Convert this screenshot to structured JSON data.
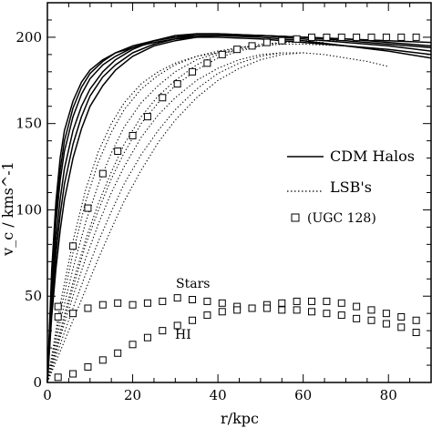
{
  "chart_data": {
    "type": "line",
    "xlabel": "r/kpc",
    "ylabel": "v_c / kms^-1",
    "xlim": [
      0,
      90
    ],
    "ylim": [
      0,
      220
    ],
    "xticks": [
      0,
      20,
      40,
      60,
      80
    ],
    "yticks": [
      0,
      50,
      100,
      150,
      200
    ],
    "xtick_labels": [
      "0",
      "20",
      "40",
      "60",
      "80"
    ],
    "ytick_labels": [
      "0",
      "50",
      "100",
      "150",
      "200"
    ],
    "grid": false,
    "legend_position": "right",
    "legend": [
      {
        "label": "CDM Halos",
        "style": "solid"
      },
      {
        "label": "LSB's",
        "style": "dotted"
      },
      {
        "label": "(UGC 128)",
        "style": "square-marker"
      }
    ],
    "annotations": [
      "Stars",
      "HI"
    ],
    "series_cdm": [
      {
        "x": [
          0,
          1,
          2,
          3,
          4,
          6,
          8,
          10,
          13,
          16,
          20,
          25,
          30,
          35,
          40,
          50,
          60,
          70,
          80,
          90
        ],
        "y": [
          0,
          65,
          105,
          130,
          146,
          163,
          174,
          181,
          187,
          191,
          194,
          197,
          199,
          200,
          200,
          199,
          197,
          195,
          193,
          190
        ]
      },
      {
        "x": [
          0,
          1,
          2,
          3,
          4,
          6,
          8,
          10,
          13,
          16,
          20,
          25,
          30,
          35,
          40,
          50,
          60,
          70,
          80,
          90
        ],
        "y": [
          0,
          55,
          92,
          117,
          134,
          154,
          167,
          176,
          184,
          189,
          194,
          198,
          201,
          202,
          202,
          201,
          199,
          197,
          195,
          192
        ]
      },
      {
        "x": [
          0,
          1,
          2,
          3,
          4,
          6,
          8,
          10,
          13,
          16,
          20,
          25,
          30,
          35,
          40,
          50,
          60,
          70,
          80,
          90
        ],
        "y": [
          0,
          48,
          82,
          106,
          124,
          146,
          160,
          170,
          180,
          187,
          193,
          198,
          200,
          202,
          202,
          201,
          200,
          199,
          197,
          195
        ]
      },
      {
        "x": [
          0,
          1,
          2,
          3,
          4,
          6,
          8,
          10,
          13,
          16,
          20,
          25,
          30,
          35,
          40,
          50,
          60,
          70,
          80,
          90
        ],
        "y": [
          0,
          42,
          74,
          97,
          115,
          138,
          154,
          166,
          177,
          184,
          191,
          196,
          199,
          201,
          201,
          201,
          200,
          198,
          196,
          194
        ]
      },
      {
        "x": [
          0,
          1,
          2,
          3,
          4,
          6,
          8,
          10,
          13,
          16,
          20,
          25,
          30,
          35,
          40,
          50,
          60,
          70,
          80,
          90
        ],
        "y": [
          0,
          60,
          98,
          123,
          140,
          159,
          171,
          179,
          186,
          191,
          195,
          198,
          200,
          201,
          201,
          200,
          198,
          195,
          192,
          188
        ]
      },
      {
        "x": [
          0,
          1,
          2,
          3,
          4,
          6,
          8,
          10,
          13,
          16,
          20,
          25,
          30,
          35,
          40,
          50,
          60,
          70,
          80,
          90
        ],
        "y": [
          0,
          38,
          66,
          88,
          106,
          130,
          147,
          160,
          172,
          181,
          189,
          195,
          198,
          200,
          201,
          201,
          200,
          199,
          198,
          197
        ]
      }
    ],
    "series_lsb": [
      {
        "x": [
          0,
          3,
          6,
          9,
          12,
          15,
          18,
          22,
          26,
          30,
          35,
          40,
          45,
          50
        ],
        "y": [
          0,
          40,
          75,
          105,
          128,
          145,
          158,
          170,
          178,
          184,
          189,
          192,
          194,
          195
        ]
      },
      {
        "x": [
          0,
          3,
          6,
          9,
          12,
          15,
          18,
          22,
          26,
          30,
          35,
          40,
          45,
          50,
          55,
          60,
          65
        ],
        "y": [
          0,
          35,
          66,
          93,
          115,
          133,
          148,
          162,
          172,
          180,
          187,
          191,
          194,
          196,
          197,
          197,
          197
        ]
      },
      {
        "x": [
          0,
          3,
          6,
          9,
          12,
          15,
          18,
          22,
          26,
          30,
          35,
          40,
          45,
          50,
          55,
          60,
          70
        ],
        "y": [
          0,
          30,
          58,
          83,
          104,
          122,
          138,
          154,
          166,
          175,
          184,
          190,
          193,
          195,
          196,
          196,
          195
        ]
      },
      {
        "x": [
          0,
          3,
          6,
          9,
          12,
          15,
          18,
          22,
          26,
          30,
          35,
          40,
          45,
          50,
          55,
          60,
          65,
          70,
          75,
          80
        ],
        "y": [
          0,
          26,
          50,
          72,
          92,
          110,
          125,
          142,
          155,
          165,
          175,
          182,
          187,
          190,
          191,
          191,
          190,
          188,
          186,
          183
        ]
      },
      {
        "x": [
          0,
          3,
          6,
          9,
          12,
          15,
          18,
          22,
          26,
          30,
          35,
          40,
          45,
          50,
          55
        ],
        "y": [
          0,
          22,
          43,
          63,
          82,
          99,
          115,
          132,
          146,
          158,
          170,
          179,
          185,
          189,
          191
        ]
      },
      {
        "x": [
          0,
          3,
          6,
          9,
          12,
          15,
          18,
          22,
          26,
          30,
          35,
          40,
          45,
          50,
          55,
          60
        ],
        "y": [
          0,
          18,
          36,
          54,
          72,
          89,
          105,
          123,
          139,
          152,
          165,
          175,
          182,
          187,
          190,
          191
        ]
      },
      {
        "x": [
          0,
          3,
          6,
          9,
          12,
          15,
          18,
          22,
          26,
          30,
          35,
          40,
          45
        ],
        "y": [
          0,
          45,
          82,
          112,
          134,
          150,
          162,
          173,
          180,
          185,
          189,
          191,
          192
        ]
      },
      {
        "x": [
          0,
          3,
          6,
          9,
          12,
          15,
          18,
          22,
          26,
          30,
          35,
          40,
          45,
          50,
          55,
          60,
          65,
          70,
          75,
          80,
          85,
          90
        ],
        "y": [
          0,
          28,
          55,
          80,
          100,
          118,
          133,
          150,
          162,
          172,
          181,
          188,
          192,
          195,
          197,
          198,
          198,
          198,
          197,
          196,
          195,
          194
        ]
      }
    ],
    "series_ugc128": {
      "name": "(UGC 128)",
      "x": [
        2.5,
        6,
        9.5,
        13,
        16.5,
        20,
        23.5,
        27,
        30.5,
        34,
        37.5,
        41,
        44.5,
        48,
        51.5,
        55,
        58.5,
        62,
        65.5,
        69,
        72.5,
        76,
        79.5,
        83,
        86.5
      ],
      "y": [
        44,
        79,
        101,
        121,
        134,
        143,
        154,
        165,
        173,
        180,
        185,
        190,
        193,
        195,
        197,
        198,
        199,
        200,
        200,
        200,
        200,
        200,
        200,
        200,
        200
      ]
    },
    "series_stars": {
      "name": "Stars",
      "x": [
        2.5,
        6,
        9.5,
        13,
        16.5,
        20,
        23.5,
        27,
        30.5,
        34,
        37.5,
        41,
        44.5,
        48,
        51.5,
        55,
        58.5,
        62,
        65.5,
        69,
        72.5,
        76,
        79.5,
        83,
        86.5
      ],
      "y": [
        38,
        40,
        43,
        45,
        46,
        45,
        46,
        47,
        49,
        48,
        47,
        46,
        44,
        43,
        45,
        46,
        47,
        47,
        47,
        46,
        44,
        42,
        40,
        38,
        36
      ]
    },
    "series_hi": {
      "name": "HI",
      "x": [
        2.5,
        6,
        9.5,
        13,
        16.5,
        20,
        23.5,
        27,
        30.5,
        34,
        37.5,
        41,
        44.5,
        48,
        51.5,
        55,
        58.5,
        62,
        65.5,
        69,
        72.5,
        76,
        79.5,
        83,
        86.5
      ],
      "y": [
        3,
        5,
        9,
        13,
        17,
        22,
        26,
        30,
        33,
        36,
        39,
        41,
        42,
        43,
        43,
        42,
        42,
        41,
        40,
        39,
        37,
        36,
        34,
        32,
        29
      ]
    }
  }
}
